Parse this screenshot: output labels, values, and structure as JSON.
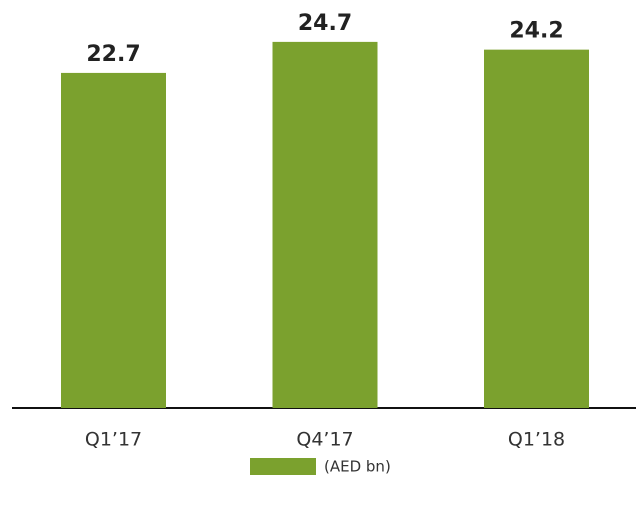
{
  "chart_data": {
    "type": "bar",
    "categories": [
      "Q1’17",
      "Q4’17",
      "Q1’18"
    ],
    "series": [
      {
        "name": "(AED bn)",
        "color": "#7ba12e",
        "values": [
          22.7,
          24.7,
          24.2
        ]
      }
    ],
    "ylim": [
      1.1,
      27.4
    ]
  }
}
